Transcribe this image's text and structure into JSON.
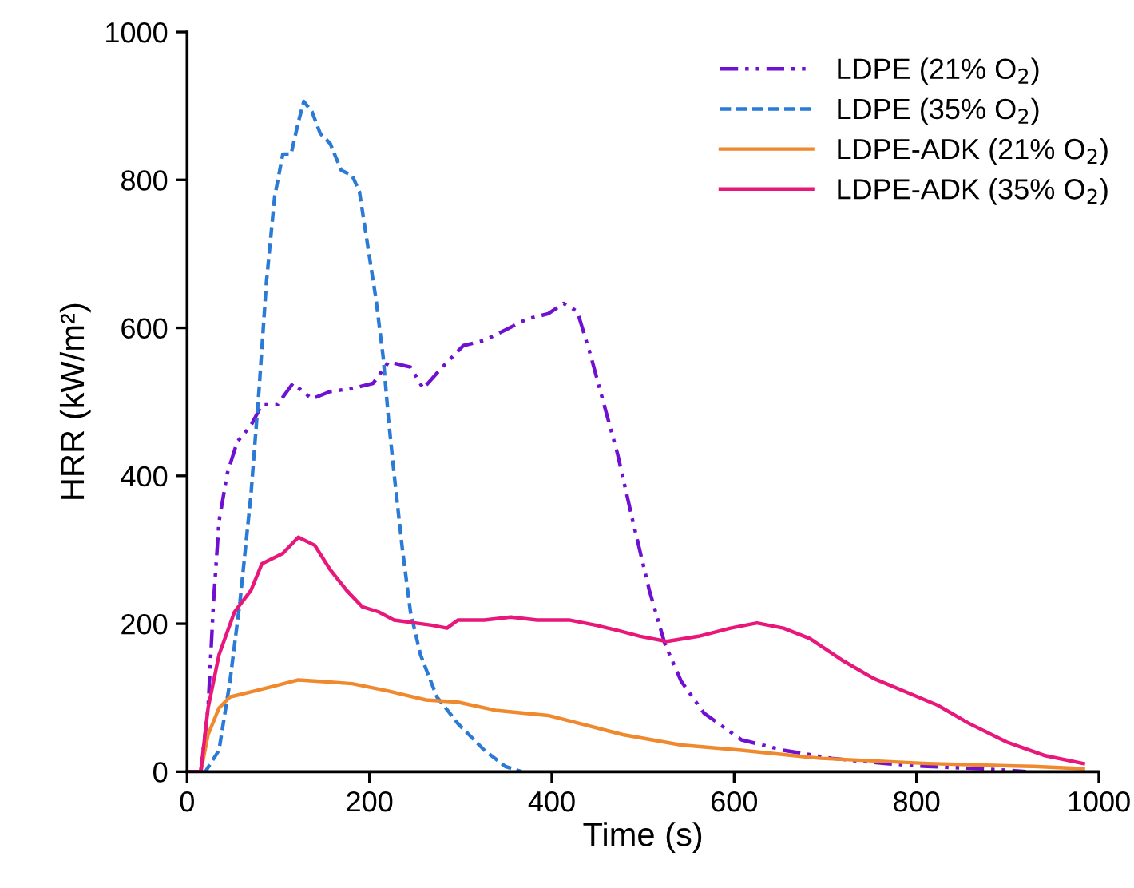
{
  "chart_data": {
    "type": "line",
    "xlabel": "Time (s)",
    "ylabel": "HRR (kW/m²)",
    "xlim": [
      0,
      1000
    ],
    "ylim": [
      0,
      1000
    ],
    "xticks": [
      0,
      200,
      400,
      600,
      800,
      1000
    ],
    "yticks": [
      0,
      200,
      400,
      600,
      800,
      1000
    ],
    "grid": false,
    "legend": "top right",
    "series": [
      {
        "name": "LDPE (21% O$_{2}$)",
        "color": "#7010d0",
        "line_style": "dashdot",
        "x": [
          0,
          15,
          23,
          29,
          35,
          44,
          55,
          70,
          82,
          99,
          116,
          137,
          157,
          181,
          204,
          221,
          245,
          259,
          280,
          303,
          326,
          349,
          373,
          396,
          413,
          428,
          443,
          454,
          472,
          489,
          507,
          524,
          542,
          567,
          608,
          654,
          707,
          765,
          812,
          870,
          911,
          920
        ],
        "values": [
          0,
          0,
          86,
          230,
          338,
          403,
          446,
          468,
          496,
          496,
          525,
          504,
          514,
          518,
          525,
          554,
          547,
          518,
          547,
          576,
          583,
          597,
          612,
          619,
          633,
          622,
          561,
          511,
          430,
          338,
          245,
          173,
          122,
          79,
          43,
          29,
          18,
          11,
          7,
          4,
          1,
          0
        ]
      },
      {
        "name": "LDPE (35% O$_{2}$)",
        "color": "#2b7bd6",
        "line_style": "dashed",
        "x": [
          0,
          20,
          35,
          47,
          58,
          70,
          79,
          87,
          96,
          105,
          114,
          122,
          128,
          137,
          146,
          157,
          169,
          181,
          189,
          198,
          207,
          215,
          221,
          227,
          236,
          245,
          256,
          274,
          297,
          326,
          349,
          367
        ],
        "values": [
          0,
          0,
          29,
          122,
          230,
          374,
          518,
          662,
          777,
          835,
          835,
          878,
          906,
          892,
          863,
          849,
          813,
          806,
          784,
          712,
          640,
          561,
          475,
          403,
          302,
          216,
          158,
          101,
          65,
          29,
          7,
          0
        ]
      },
      {
        "name": "LDPE-ADK (21% O$_{2}$)",
        "color": "#f0892e",
        "line_style": "solid",
        "x": [
          0,
          15,
          23,
          35,
          47,
          70,
          93,
          122,
          146,
          181,
          221,
          262,
          297,
          338,
          396,
          431,
          478,
          542,
          608,
          695,
          812,
          928,
          983
        ],
        "values": [
          0,
          0,
          50,
          86,
          101,
          108,
          115,
          124,
          122,
          119,
          109,
          97,
          94,
          83,
          76,
          65,
          50,
          36,
          29,
          18,
          11,
          7,
          4
        ]
      },
      {
        "name": "LDPE-ADK (35% O$_{2}$)",
        "color": "#e8177a",
        "line_style": "solid",
        "x": [
          0,
          15,
          23,
          35,
          52,
          70,
          82,
          105,
          122,
          140,
          157,
          175,
          192,
          210,
          227,
          250,
          268,
          285,
          297,
          326,
          355,
          384,
          419,
          448,
          472,
          497,
          526,
          561,
          596,
          625,
          654,
          683,
          718,
          753,
          788,
          823,
          858,
          899,
          940,
          983
        ],
        "values": [
          0,
          0,
          86,
          158,
          216,
          245,
          281,
          295,
          317,
          306,
          273,
          245,
          223,
          216,
          205,
          201,
          198,
          194,
          205,
          205,
          209,
          205,
          205,
          198,
          191,
          183,
          176,
          183,
          194,
          201,
          194,
          180,
          151,
          126,
          108,
          90,
          65,
          40,
          22,
          11
        ]
      }
    ]
  }
}
